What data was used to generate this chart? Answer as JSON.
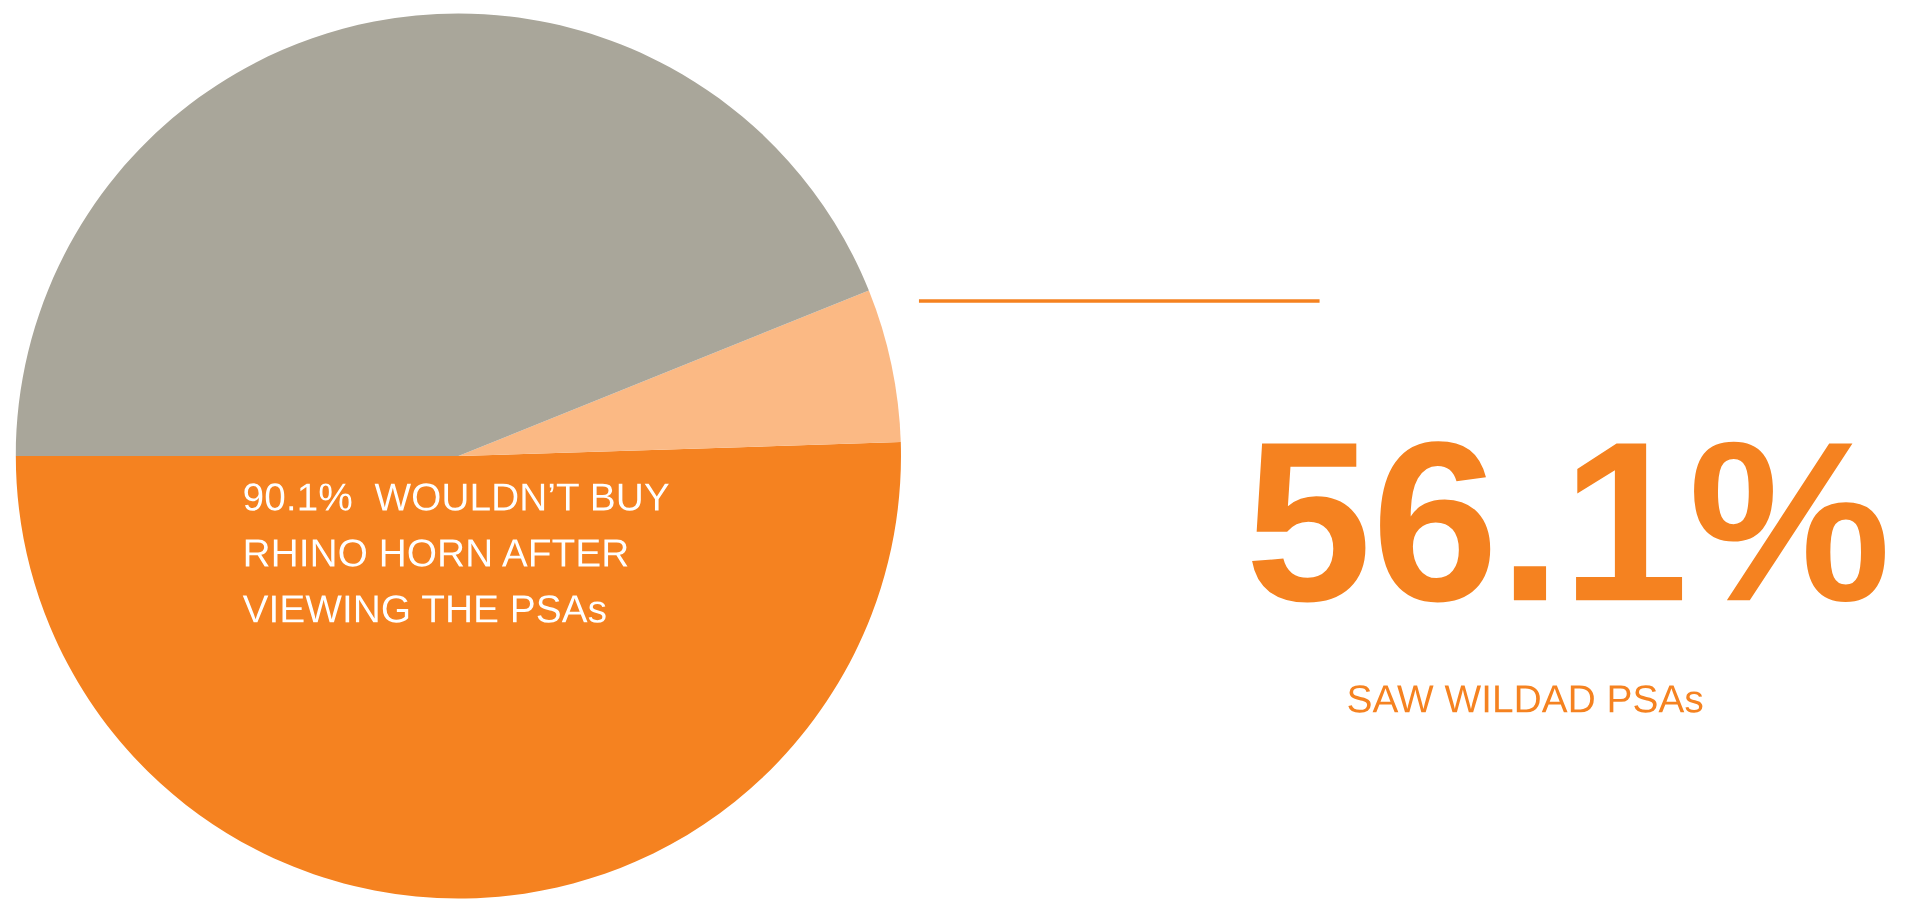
{
  "chart_data": {
    "type": "pie",
    "categories": [
      null,
      null,
      null
    ],
    "values": [
      50.5,
      5.6,
      43.9
    ],
    "colors": [
      "#f58220",
      "#fbb984",
      "#a9a69a"
    ],
    "annotations": [
      "90.1%  WOULDN’T BUY\nRHINO HORN AFTER\nVIEWING THE PSAs",
      "56.1%",
      "SAW WILDAD PSAs"
    ]
  }
}
